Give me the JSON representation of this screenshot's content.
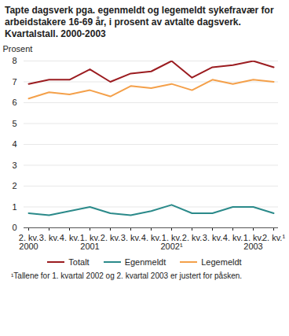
{
  "chart_data": {
    "type": "line",
    "title": "Tapte dagsverk pga. egenmeldt og legemeldt sykefravær for arbeidstakere 16-69 år, i prosent av avtalte dagsverk. Kvartalstall. 2000-2003",
    "y_label": "Prosent",
    "categories": [
      "2. kv.\n2000",
      "3. kv.",
      "4. kv.",
      "1. kv.\n2001",
      "2. kv.",
      "3. kv.",
      "4. kv.",
      "1. kv.\n2002¹",
      "2. kv.",
      "3. kv.",
      "4. kv.",
      "1. kv.\n2003",
      "2. kv.¹"
    ],
    "series": [
      {
        "name": "Totalt",
        "color": "#9b1c20",
        "values": [
          6.9,
          7.1,
          7.1,
          7.6,
          7.0,
          7.4,
          7.5,
          8.0,
          7.2,
          7.7,
          7.8,
          8.0,
          7.7
        ]
      },
      {
        "name": "Egenmeldt",
        "color": "#2b8a8a",
        "values": [
          0.7,
          0.6,
          0.8,
          1.0,
          0.7,
          0.6,
          0.8,
          1.1,
          0.7,
          0.7,
          1.0,
          1.0,
          0.7
        ]
      },
      {
        "name": "Legemeldt",
        "color": "#f4a04a",
        "values": [
          6.2,
          6.5,
          6.4,
          6.6,
          6.3,
          6.8,
          6.7,
          6.9,
          6.6,
          7.1,
          6.9,
          7.1,
          7.0
        ]
      }
    ],
    "ylim": [
      0,
      8
    ],
    "yticks": [
      0,
      1,
      2,
      3,
      4,
      5,
      6,
      7,
      8
    ],
    "grid": true,
    "legend": "bottom",
    "footnote": "¹Tallene for 1. kvartal 2002 og 2. kvartal 2003 er justert for påsken."
  }
}
